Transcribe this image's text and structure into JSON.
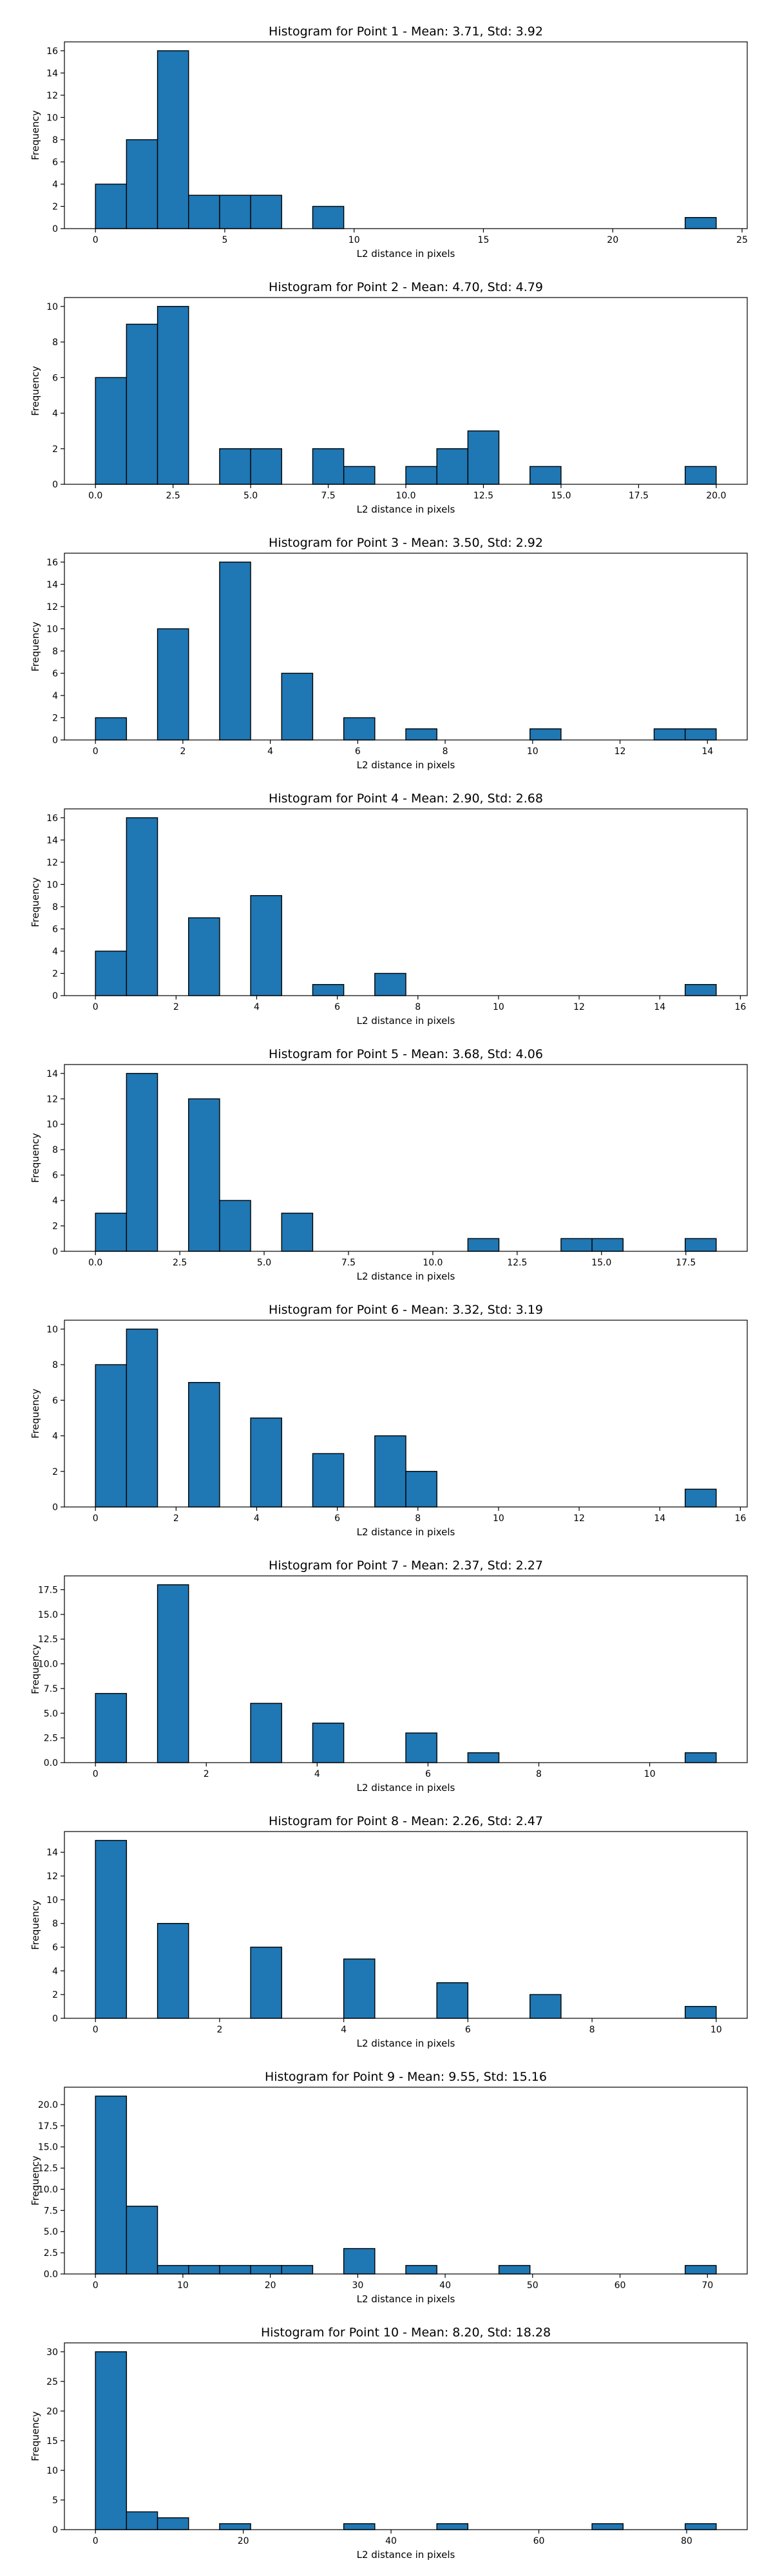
{
  "figure": {
    "background": "#ffffff",
    "bar_color": "#1f77b4",
    "bar_edge_color": "#000000"
  },
  "chart_data": [
    {
      "type": "bar",
      "title": "Histogram for Point 1 - Mean: 3.71, Std: 3.92",
      "xlabel": "L2 distance in pixels",
      "ylabel": "Frequency",
      "grid": false,
      "xlim": [
        -1.2,
        25.2
      ],
      "ylim": [
        0,
        16.8
      ],
      "xticks": [
        0,
        5,
        10,
        15,
        20,
        25
      ],
      "xtick_labels": [
        "0",
        "5",
        "10",
        "15",
        "20",
        "25"
      ],
      "yticks": [
        0,
        2,
        4,
        6,
        8,
        10,
        12,
        14,
        16
      ],
      "ytick_labels": [
        "0",
        "2",
        "4",
        "6",
        "8",
        "10",
        "12",
        "14",
        "16"
      ],
      "bins": [
        [
          0,
          1.2,
          4
        ],
        [
          1.2,
          2.4,
          8
        ],
        [
          2.4,
          3.6,
          16
        ],
        [
          3.6,
          4.8,
          3
        ],
        [
          4.8,
          6.0,
          3
        ],
        [
          6.0,
          7.2,
          3
        ],
        [
          8.4,
          9.6,
          2
        ],
        [
          22.8,
          24.0,
          1
        ]
      ]
    },
    {
      "type": "bar",
      "title": "Histogram for Point 2 - Mean: 4.70, Std: 4.79",
      "xlabel": "L2 distance in pixels",
      "ylabel": "Frequency",
      "grid": false,
      "xlim": [
        -1.0,
        21.0
      ],
      "ylim": [
        0,
        10.5
      ],
      "xticks": [
        0,
        2.5,
        5,
        7.5,
        10,
        12.5,
        15,
        17.5,
        20
      ],
      "xtick_labels": [
        "0.0",
        "2.5",
        "5.0",
        "7.5",
        "10.0",
        "12.5",
        "15.0",
        "17.5",
        "20.0"
      ],
      "yticks": [
        0,
        2,
        4,
        6,
        8,
        10
      ],
      "ytick_labels": [
        "0",
        "2",
        "4",
        "6",
        "8",
        "10"
      ],
      "bins": [
        [
          0,
          1,
          6
        ],
        [
          1,
          2,
          9
        ],
        [
          2,
          3,
          10
        ],
        [
          4,
          5,
          2
        ],
        [
          5,
          6,
          2
        ],
        [
          7,
          8,
          2
        ],
        [
          8,
          9,
          1
        ],
        [
          10,
          11,
          1
        ],
        [
          11,
          12,
          2
        ],
        [
          12,
          13,
          3
        ],
        [
          14,
          15,
          1
        ],
        [
          19,
          20,
          1
        ]
      ]
    },
    {
      "type": "bar",
      "title": "Histogram for Point 3 - Mean: 3.50, Std: 2.92",
      "xlabel": "L2 distance in pixels",
      "ylabel": "Frequency",
      "grid": false,
      "xlim": [
        -0.71,
        14.91
      ],
      "ylim": [
        0,
        16.8
      ],
      "xticks": [
        0,
        2,
        4,
        6,
        8,
        10,
        12,
        14
      ],
      "xtick_labels": [
        "0",
        "2",
        "4",
        "6",
        "8",
        "10",
        "12",
        "14"
      ],
      "yticks": [
        0,
        2,
        4,
        6,
        8,
        10,
        12,
        14,
        16
      ],
      "ytick_labels": [
        "0",
        "2",
        "4",
        "6",
        "8",
        "10",
        "12",
        "14",
        "16"
      ],
      "bins": [
        [
          0,
          0.71,
          2
        ],
        [
          1.42,
          2.13,
          10
        ],
        [
          2.84,
          3.55,
          16
        ],
        [
          4.26,
          4.97,
          6
        ],
        [
          5.68,
          6.39,
          2
        ],
        [
          7.1,
          7.81,
          1
        ],
        [
          9.94,
          10.65,
          1
        ],
        [
          12.78,
          13.49,
          1
        ],
        [
          13.49,
          14.2,
          1
        ]
      ]
    },
    {
      "type": "bar",
      "title": "Histogram for Point 4 - Mean: 2.90, Std: 2.68",
      "xlabel": "L2 distance in pixels",
      "ylabel": "Frequency",
      "grid": false,
      "xlim": [
        -0.77,
        16.17
      ],
      "ylim": [
        0,
        16.8
      ],
      "xticks": [
        0,
        2,
        4,
        6,
        8,
        10,
        12,
        14,
        16
      ],
      "xtick_labels": [
        "0",
        "2",
        "4",
        "6",
        "8",
        "10",
        "12",
        "14",
        "16"
      ],
      "yticks": [
        0,
        2,
        4,
        6,
        8,
        10,
        12,
        14,
        16
      ],
      "ytick_labels": [
        "0",
        "2",
        "4",
        "6",
        "8",
        "10",
        "12",
        "14",
        "16"
      ],
      "bins": [
        [
          0,
          0.77,
          4
        ],
        [
          0.77,
          1.54,
          16
        ],
        [
          2.31,
          3.08,
          7
        ],
        [
          3.85,
          4.62,
          9
        ],
        [
          5.39,
          6.16,
          1
        ],
        [
          6.93,
          7.7,
          2
        ],
        [
          14.63,
          15.4,
          1
        ]
      ]
    },
    {
      "type": "bar",
      "title": "Histogram for Point 5 - Mean: 3.68, Std: 4.06",
      "xlabel": "L2 distance in pixels",
      "ylabel": "Frequency",
      "grid": false,
      "xlim": [
        -0.92,
        19.32
      ],
      "ylim": [
        0,
        14.7
      ],
      "xticks": [
        0,
        2.5,
        5,
        7.5,
        10,
        12.5,
        15,
        17.5
      ],
      "xtick_labels": [
        "0.0",
        "2.5",
        "5.0",
        "7.5",
        "10.0",
        "12.5",
        "15.0",
        "17.5"
      ],
      "yticks": [
        0,
        2,
        4,
        6,
        8,
        10,
        12,
        14
      ],
      "ytick_labels": [
        "0",
        "2",
        "4",
        "6",
        "8",
        "10",
        "12",
        "14"
      ],
      "bins": [
        [
          0,
          0.92,
          3
        ],
        [
          0.92,
          1.84,
          14
        ],
        [
          2.76,
          3.68,
          12
        ],
        [
          3.68,
          4.6,
          4
        ],
        [
          5.52,
          6.44,
          3
        ],
        [
          11.04,
          11.96,
          1
        ],
        [
          13.8,
          14.72,
          1
        ],
        [
          14.72,
          15.64,
          1
        ],
        [
          17.48,
          18.4,
          1
        ]
      ]
    },
    {
      "type": "bar",
      "title": "Histogram for Point 6 - Mean: 3.32, Std: 3.19",
      "xlabel": "L2 distance in pixels",
      "ylabel": "Frequency",
      "grid": false,
      "xlim": [
        -0.77,
        16.17
      ],
      "ylim": [
        0,
        10.5
      ],
      "xticks": [
        0,
        2,
        4,
        6,
        8,
        10,
        12,
        14,
        16
      ],
      "xtick_labels": [
        "0",
        "2",
        "4",
        "6",
        "8",
        "10",
        "12",
        "14",
        "16"
      ],
      "yticks": [
        0,
        2,
        4,
        6,
        8,
        10
      ],
      "ytick_labels": [
        "0",
        "2",
        "4",
        "6",
        "8",
        "10"
      ],
      "bins": [
        [
          0,
          0.77,
          8
        ],
        [
          0.77,
          1.54,
          10
        ],
        [
          2.31,
          3.08,
          7
        ],
        [
          3.85,
          4.62,
          5
        ],
        [
          5.39,
          6.16,
          3
        ],
        [
          6.93,
          7.7,
          4
        ],
        [
          7.7,
          8.47,
          2
        ],
        [
          14.63,
          15.4,
          1
        ]
      ]
    },
    {
      "type": "bar",
      "title": "Histogram for Point 7 - Mean: 2.37, Std: 2.27",
      "xlabel": "L2 distance in pixels",
      "ylabel": "Frequency",
      "grid": false,
      "xlim": [
        -0.56,
        11.76
      ],
      "ylim": [
        0,
        18.9
      ],
      "xticks": [
        0,
        2,
        4,
        6,
        8,
        10
      ],
      "xtick_labels": [
        "0",
        "2",
        "4",
        "6",
        "8",
        "10"
      ],
      "yticks": [
        0,
        2.5,
        5,
        7.5,
        10,
        12.5,
        15,
        17.5
      ],
      "ytick_labels": [
        "0.0",
        "2.5",
        "5.0",
        "7.5",
        "10.0",
        "12.5",
        "15.0",
        "17.5"
      ],
      "bins": [
        [
          0,
          0.56,
          7
        ],
        [
          1.12,
          1.68,
          18
        ],
        [
          2.8,
          3.36,
          6
        ],
        [
          3.92,
          4.48,
          4
        ],
        [
          5.6,
          6.16,
          3
        ],
        [
          6.72,
          7.28,
          1
        ],
        [
          10.64,
          11.2,
          1
        ]
      ]
    },
    {
      "type": "bar",
      "title": "Histogram for Point 8 - Mean: 2.26, Std: 2.47",
      "xlabel": "L2 distance in pixels",
      "ylabel": "Frequency",
      "grid": false,
      "xlim": [
        -0.5,
        10.5
      ],
      "ylim": [
        0,
        15.75
      ],
      "xticks": [
        0,
        2,
        4,
        6,
        8,
        10
      ],
      "xtick_labels": [
        "0",
        "2",
        "4",
        "6",
        "8",
        "10"
      ],
      "yticks": [
        0,
        2,
        4,
        6,
        8,
        10,
        12,
        14
      ],
      "ytick_labels": [
        "0",
        "2",
        "4",
        "6",
        "8",
        "10",
        "12",
        "14"
      ],
      "bins": [
        [
          0,
          0.5,
          15
        ],
        [
          1,
          1.5,
          8
        ],
        [
          2.5,
          3,
          6
        ],
        [
          4,
          4.5,
          5
        ],
        [
          5.5,
          6,
          3
        ],
        [
          7,
          7.5,
          2
        ],
        [
          9.5,
          10,
          1
        ]
      ]
    },
    {
      "type": "bar",
      "title": "Histogram for Point 9 - Mean: 9.55, Std: 15.16",
      "xlabel": "L2 distance in pixels",
      "ylabel": "Frequency",
      "grid": false,
      "xlim": [
        -3.55,
        74.55
      ],
      "ylim": [
        0,
        22.05
      ],
      "xticks": [
        0,
        10,
        20,
        30,
        40,
        50,
        60,
        70
      ],
      "xtick_labels": [
        "0",
        "10",
        "20",
        "30",
        "40",
        "50",
        "60",
        "70"
      ],
      "yticks": [
        0,
        2.5,
        5,
        7.5,
        10,
        12.5,
        15,
        17.5,
        20
      ],
      "ytick_labels": [
        "0.0",
        "2.5",
        "5.0",
        "7.5",
        "10.0",
        "12.5",
        "15.0",
        "17.5",
        "20.0"
      ],
      "bins": [
        [
          0,
          3.55,
          21
        ],
        [
          3.55,
          7.1,
          8
        ],
        [
          7.1,
          10.65,
          1
        ],
        [
          10.65,
          14.2,
          1
        ],
        [
          14.2,
          17.75,
          1
        ],
        [
          17.75,
          21.3,
          1
        ],
        [
          21.3,
          24.85,
          1
        ],
        [
          28.4,
          31.95,
          3
        ],
        [
          35.5,
          39.05,
          1
        ],
        [
          46.15,
          49.7,
          1
        ],
        [
          67.45,
          71.0,
          1
        ]
      ]
    },
    {
      "type": "bar",
      "title": "Histogram for Point 10 - Mean: 8.20, Std: 18.28",
      "xlabel": "L2 distance in pixels",
      "ylabel": "Frequency",
      "grid": false,
      "xlim": [
        -4.2,
        88.2
      ],
      "ylim": [
        0,
        31.5
      ],
      "xticks": [
        0,
        20,
        40,
        60,
        80
      ],
      "xtick_labels": [
        "0",
        "20",
        "40",
        "60",
        "80"
      ],
      "yticks": [
        0,
        5,
        10,
        15,
        20,
        25,
        30
      ],
      "ytick_labels": [
        "0",
        "5",
        "10",
        "15",
        "20",
        "25",
        "30"
      ],
      "bins": [
        [
          0,
          4.2,
          30
        ],
        [
          4.2,
          8.4,
          3
        ],
        [
          8.4,
          12.6,
          2
        ],
        [
          16.8,
          21.0,
          1
        ],
        [
          33.6,
          37.8,
          1
        ],
        [
          46.2,
          50.4,
          1
        ],
        [
          67.2,
          71.4,
          1
        ],
        [
          79.8,
          84.0,
          1
        ]
      ]
    }
  ]
}
